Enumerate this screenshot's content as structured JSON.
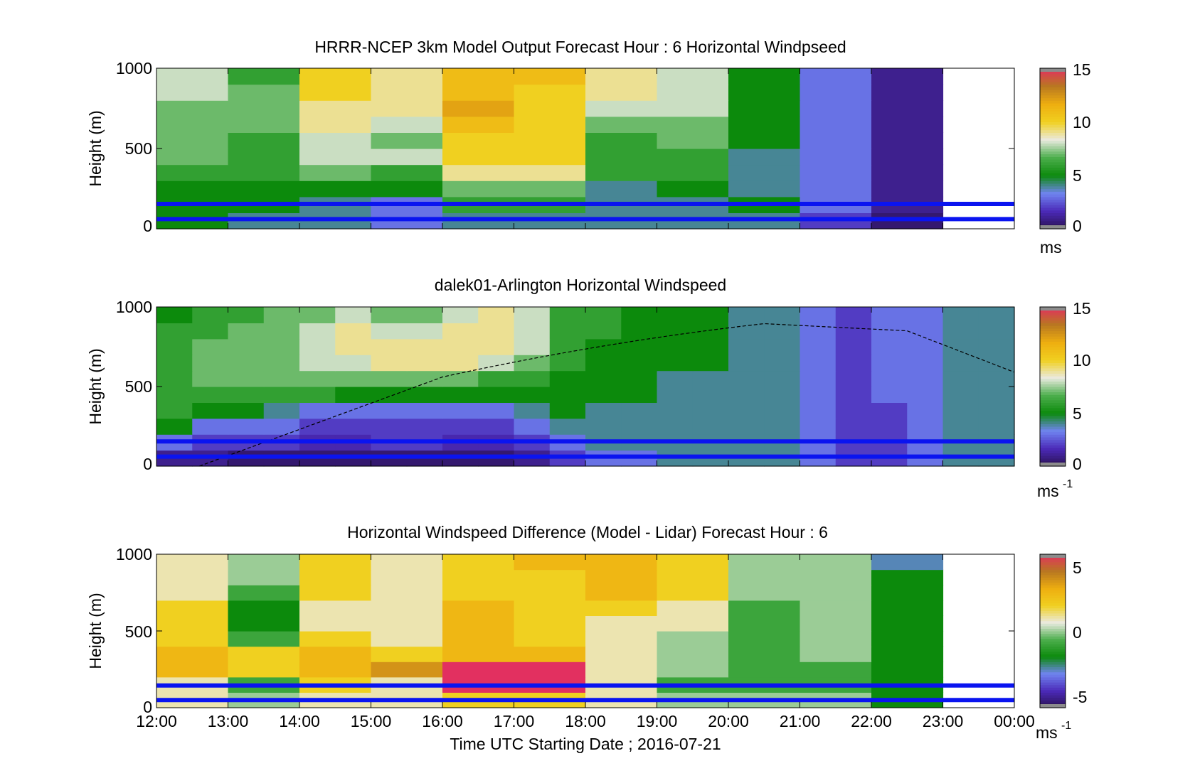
{
  "colors": {
    "overlay_lines": "#0a14f0",
    "colormap": [
      "#2a1050",
      "#4b2ab8",
      "#6f84f0",
      "#0c8a0c",
      "#4cae4c",
      "#eaeae0",
      "#f0d020",
      "#eeae10",
      "#b87820",
      "#e23060"
    ]
  },
  "xaxis": {
    "label": "Time UTC  Starting Date ; 2016-07-21",
    "ticks": [
      "12:00",
      "13:00",
      "14:00",
      "15:00",
      "16:00",
      "17:00",
      "18:00",
      "19:00",
      "20:00",
      "21:00",
      "22:00",
      "23:00",
      "00:00"
    ]
  },
  "chart_data": [
    {
      "type": "heatmap",
      "title": "HRRR-NCEP 3km Model Output   Forecast Hour : 6 Horizontal Windpseed",
      "ylabel": "Height (m)",
      "ylim": [
        0,
        1000
      ],
      "yticks": [
        "0",
        "500",
        "1000"
      ],
      "x_start": "12:00",
      "x_end": "00:00",
      "time_columns": [
        "12:00",
        "13:00",
        "14:00",
        "15:00",
        "16:00",
        "17:00",
        "18:00",
        "19:00",
        "20:00",
        "21:00",
        "22:00"
      ],
      "height_bins_m": [
        0,
        100,
        200,
        300,
        400,
        500,
        600,
        700,
        800,
        900
      ],
      "values_ms": [
        [
          5,
          4,
          4,
          3,
          4,
          4,
          4,
          4,
          4,
          2,
          0.5
        ],
        [
          5,
          5,
          4,
          3,
          6,
          6,
          4,
          4,
          5,
          3,
          1
        ],
        [
          5,
          5,
          5,
          5,
          7,
          7,
          4,
          5,
          4,
          3,
          1
        ],
        [
          6,
          6,
          7,
          6,
          9,
          9,
          6,
          6,
          4,
          3,
          1
        ],
        [
          7,
          6,
          8,
          8,
          10,
          10,
          6,
          6,
          4,
          3,
          1
        ],
        [
          7,
          6,
          8,
          7,
          10,
          10,
          6,
          7,
          5,
          3,
          1
        ],
        [
          7,
          7,
          9,
          8,
          11,
          10,
          7,
          7,
          5,
          3,
          1
        ],
        [
          7,
          7,
          9,
          9,
          12,
          10,
          8,
          8,
          5,
          3,
          1
        ],
        [
          8,
          7,
          10,
          9,
          11,
          10,
          9,
          8,
          5,
          3,
          1
        ],
        [
          8,
          6,
          10,
          9,
          11,
          11,
          9,
          8,
          5,
          3,
          1
        ]
      ],
      "overlay_lines_m": [
        60,
        155
      ],
      "colorbar": {
        "label": "ms",
        "superscript": "",
        "ticks": [
          "0",
          "5",
          "10",
          "15"
        ],
        "range": [
          0,
          15
        ]
      }
    },
    {
      "type": "heatmap",
      "title": "dalek01-Arlington  Horizontal Windspeed",
      "ylabel": "Height (m)",
      "ylim": [
        0,
        1000
      ],
      "yticks": [
        "0",
        "500",
        "1000"
      ],
      "x_start": "12:00",
      "x_end": "00:00",
      "time_columns": [
        "12:00",
        "12:30",
        "13:00",
        "13:30",
        "14:00",
        "14:30",
        "15:00",
        "15:30",
        "16:00",
        "16:30",
        "17:00",
        "17:30",
        "18:00",
        "18:30",
        "19:00",
        "19:30",
        "20:00",
        "20:30",
        "21:00",
        "21:30",
        "22:00",
        "22:30",
        "23:00",
        "23:30"
      ],
      "height_bins_m": [
        0,
        100,
        200,
        300,
        400,
        500,
        600,
        700,
        800,
        900
      ],
      "values_ms": [
        [
          1,
          1,
          0.5,
          0.5,
          0.5,
          0.5,
          0.5,
          0.5,
          0.5,
          0.5,
          1,
          2,
          3,
          3,
          4,
          4,
          4,
          4,
          3,
          2,
          2,
          3,
          4,
          4
        ],
        [
          3,
          2,
          2,
          2,
          1.5,
          1.5,
          2,
          2,
          1.5,
          1.5,
          2,
          3,
          4,
          4,
          4,
          4,
          4,
          4,
          3,
          2,
          2,
          3,
          4,
          4
        ],
        [
          5,
          3,
          3,
          3,
          2,
          2,
          2,
          2,
          2,
          2,
          3,
          4,
          4,
          4,
          4,
          4,
          4,
          4,
          3,
          2,
          2,
          3,
          4,
          4
        ],
        [
          6,
          5,
          5,
          4,
          3,
          3,
          3,
          3,
          3,
          3,
          4,
          5,
          4,
          4,
          4,
          4,
          4,
          4,
          3,
          2,
          2,
          3,
          4,
          4
        ],
        [
          6,
          6,
          6,
          6,
          6,
          5,
          5,
          5,
          5,
          5,
          5,
          5,
          5,
          5,
          4,
          4,
          4,
          4,
          3,
          2,
          3,
          3,
          4,
          4
        ],
        [
          6,
          7,
          7,
          7,
          7,
          7,
          7,
          7,
          7,
          6,
          6,
          5,
          5,
          5,
          4,
          4,
          4,
          4,
          3,
          2,
          3,
          3,
          4,
          4
        ],
        [
          6,
          7,
          7,
          7,
          8,
          8,
          9,
          9,
          9,
          8,
          7,
          6,
          5,
          5,
          5,
          5,
          4,
          4,
          3,
          2,
          3,
          3,
          4,
          4
        ],
        [
          6,
          7,
          7,
          7,
          8,
          9,
          9,
          9,
          9,
          9,
          8,
          6,
          5,
          5,
          5,
          5,
          4,
          4,
          3,
          2,
          3,
          3,
          4,
          4
        ],
        [
          6,
          6,
          7,
          7,
          8,
          9,
          8,
          8,
          9,
          9,
          8,
          6,
          6,
          5,
          5,
          5,
          4,
          4,
          3,
          2,
          3,
          3,
          4,
          4
        ],
        [
          5,
          6,
          6,
          7,
          7,
          8,
          7,
          7,
          8,
          9,
          8,
          6,
          6,
          5,
          5,
          5,
          4,
          4,
          3,
          2,
          3,
          3,
          4,
          4
        ]
      ],
      "curve_points_m": [
        [
          12.6,
          0
        ],
        [
          16.0,
          560
        ],
        [
          20.5,
          895
        ],
        [
          22.5,
          850
        ],
        [
          24.0,
          590
        ]
      ],
      "overlay_lines_m": [
        60,
        155
      ],
      "colorbar": {
        "label": "ms",
        "superscript": "-1",
        "ticks": [
          "0",
          "5",
          "10",
          "15"
        ],
        "range": [
          0,
          15
        ]
      }
    },
    {
      "type": "heatmap",
      "title": "Horizontal Windspeed Difference (Model - Lidar) Forecast Hour : 6",
      "ylabel": "Height (m)",
      "ylim": [
        0,
        1000
      ],
      "yticks": [
        "0",
        "500",
        "1000"
      ],
      "x_start": "12:00",
      "x_end": "00:00",
      "time_columns": [
        "12:00",
        "13:00",
        "14:00",
        "15:00",
        "16:00",
        "17:00",
        "18:00",
        "19:00",
        "20:00",
        "21:00",
        "22:00"
      ],
      "height_bins_m": [
        0,
        100,
        200,
        300,
        400,
        500,
        600,
        700,
        800,
        900
      ],
      "values_ms": [
        [
          1,
          0,
          1,
          1,
          2,
          2,
          1,
          0,
          0,
          0,
          -2
        ],
        [
          1,
          -1,
          2,
          1,
          6,
          6,
          1,
          -1,
          -1,
          -1,
          -2
        ],
        [
          3,
          2,
          3,
          4,
          6,
          6,
          1,
          0,
          -1,
          -1,
          -2
        ],
        [
          3,
          2,
          3,
          2,
          3,
          3,
          1,
          0,
          -1,
          0,
          -2
        ],
        [
          2,
          -1,
          2,
          1,
          3,
          2,
          1,
          0,
          -1,
          0,
          -2
        ],
        [
          2,
          -2,
          1,
          1,
          3,
          2,
          1,
          1,
          -1,
          0,
          -2
        ],
        [
          2,
          -2,
          1,
          1,
          3,
          2,
          2,
          1,
          -1,
          0,
          -2
        ],
        [
          1,
          -1,
          2,
          1,
          2,
          2,
          3,
          2,
          0,
          0,
          -2
        ],
        [
          1,
          0,
          2,
          1,
          2,
          2,
          3,
          2,
          0,
          0,
          -2
        ],
        [
          1,
          0,
          2,
          1,
          2,
          3,
          3,
          2,
          0,
          0,
          -3
        ]
      ],
      "overlay_lines_m": [
        50,
        145
      ],
      "colorbar": {
        "label": "ms",
        "superscript": "-1",
        "ticks": [
          "-5",
          "0",
          "5"
        ],
        "range": [
          -6,
          6
        ]
      }
    }
  ]
}
